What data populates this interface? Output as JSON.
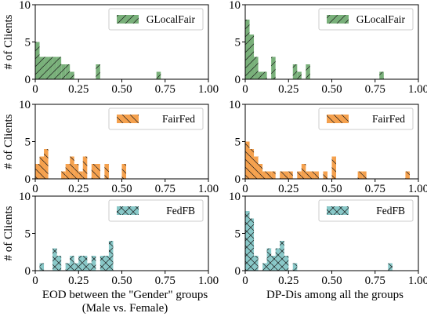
{
  "chart_data": [
    {
      "type": "bar",
      "legend": "GLocalFair",
      "color": "#79b07a",
      "hatch": "slash",
      "ylabel": "# of Clients",
      "xlabel": "",
      "xlim": [
        0,
        1
      ],
      "ylim": [
        0,
        10
      ],
      "xticks": [
        "0",
        "0.25",
        "0.50",
        "0.75",
        "1.00"
      ],
      "yticks": [
        "0",
        "5",
        "10"
      ],
      "bins": [
        {
          "x": 0.0,
          "count": 5
        },
        {
          "x": 0.025,
          "count": 3
        },
        {
          "x": 0.05,
          "count": 3
        },
        {
          "x": 0.075,
          "count": 3
        },
        {
          "x": 0.1,
          "count": 3
        },
        {
          "x": 0.125,
          "count": 3
        },
        {
          "x": 0.15,
          "count": 2
        },
        {
          "x": 0.175,
          "count": 2
        },
        {
          "x": 0.2,
          "count": 1
        },
        {
          "x": 0.35,
          "count": 2
        },
        {
          "x": 0.7,
          "count": 1
        }
      ]
    },
    {
      "type": "bar",
      "legend": "GLocalFair",
      "color": "#79b07a",
      "hatch": "slash",
      "ylabel": "",
      "xlabel": "",
      "xlim": [
        0,
        1
      ],
      "ylim": [
        0,
        10
      ],
      "xticks": [
        "0",
        "0.25",
        "0.50",
        "0.75",
        "1.00"
      ],
      "yticks": [
        "0",
        "5",
        "10"
      ],
      "bins": [
        {
          "x": 0.0,
          "count": 8
        },
        {
          "x": 0.025,
          "count": 6
        },
        {
          "x": 0.05,
          "count": 3
        },
        {
          "x": 0.075,
          "count": 1
        },
        {
          "x": 0.1,
          "count": 1
        },
        {
          "x": 0.15,
          "count": 3
        },
        {
          "x": 0.275,
          "count": 2
        },
        {
          "x": 0.3,
          "count": 1
        },
        {
          "x": 0.35,
          "count": 2
        },
        {
          "x": 0.775,
          "count": 1
        }
      ]
    },
    {
      "type": "bar",
      "legend": "FairFed",
      "color": "#f5a14e",
      "hatch": "backslash",
      "ylabel": "# of Clients",
      "xlabel": "",
      "xlim": [
        0,
        1
      ],
      "ylim": [
        0,
        10
      ],
      "xticks": [
        "0",
        "0.25",
        "0.50",
        "0.75",
        "1.00"
      ],
      "yticks": [
        "0",
        "5",
        "10"
      ],
      "bins": [
        {
          "x": 0.0,
          "count": 2
        },
        {
          "x": 0.025,
          "count": 3
        },
        {
          "x": 0.05,
          "count": 4
        },
        {
          "x": 0.15,
          "count": 1
        },
        {
          "x": 0.175,
          "count": 2
        },
        {
          "x": 0.2,
          "count": 3
        },
        {
          "x": 0.225,
          "count": 2
        },
        {
          "x": 0.25,
          "count": 1
        },
        {
          "x": 0.275,
          "count": 3
        },
        {
          "x": 0.325,
          "count": 2
        },
        {
          "x": 0.35,
          "count": 2
        },
        {
          "x": 0.4,
          "count": 2
        },
        {
          "x": 0.5,
          "count": 2
        }
      ]
    },
    {
      "type": "bar",
      "legend": "FairFed",
      "color": "#f5a14e",
      "hatch": "backslash",
      "ylabel": "",
      "xlabel": "",
      "xlim": [
        0,
        1
      ],
      "ylim": [
        0,
        10
      ],
      "xticks": [
        "0",
        "0.25",
        "0.50",
        "0.75",
        "1.00"
      ],
      "yticks": [
        "0",
        "5",
        "10"
      ],
      "bins": [
        {
          "x": 0.0,
          "count": 5
        },
        {
          "x": 0.025,
          "count": 4
        },
        {
          "x": 0.05,
          "count": 3
        },
        {
          "x": 0.075,
          "count": 2
        },
        {
          "x": 0.1,
          "count": 1
        },
        {
          "x": 0.125,
          "count": 1
        },
        {
          "x": 0.15,
          "count": 1
        },
        {
          "x": 0.2,
          "count": 1
        },
        {
          "x": 0.225,
          "count": 1
        },
        {
          "x": 0.25,
          "count": 1
        },
        {
          "x": 0.3,
          "count": 1
        },
        {
          "x": 0.325,
          "count": 2
        },
        {
          "x": 0.35,
          "count": 1
        },
        {
          "x": 0.375,
          "count": 1
        },
        {
          "x": 0.4,
          "count": 1
        },
        {
          "x": 0.45,
          "count": 1
        },
        {
          "x": 0.5,
          "count": 3
        },
        {
          "x": 0.65,
          "count": 1
        },
        {
          "x": 0.675,
          "count": 1
        },
        {
          "x": 0.925,
          "count": 1
        }
      ]
    },
    {
      "type": "bar",
      "legend": "FedFB",
      "color": "#88c8c8",
      "hatch": "cross",
      "ylabel": "# of Clients",
      "xlabel": "EOD between the \"Gender\" groups\n(Male vs. Female)",
      "xlim": [
        0,
        1
      ],
      "ylim": [
        0,
        10
      ],
      "xticks": [
        "0",
        "0.25",
        "0.50",
        "0.75",
        "1.00"
      ],
      "yticks": [
        "0",
        "5",
        "10"
      ],
      "bins": [
        {
          "x": 0.025,
          "count": 1
        },
        {
          "x": 0.1,
          "count": 3
        },
        {
          "x": 0.125,
          "count": 2
        },
        {
          "x": 0.175,
          "count": 1
        },
        {
          "x": 0.2,
          "count": 2
        },
        {
          "x": 0.225,
          "count": 1
        },
        {
          "x": 0.25,
          "count": 2
        },
        {
          "x": 0.275,
          "count": 2
        },
        {
          "x": 0.3,
          "count": 1
        },
        {
          "x": 0.325,
          "count": 2
        },
        {
          "x": 0.375,
          "count": 2
        },
        {
          "x": 0.4,
          "count": 2
        },
        {
          "x": 0.425,
          "count": 4
        }
      ]
    },
    {
      "type": "bar",
      "legend": "FedFB",
      "color": "#88c8c8",
      "hatch": "cross",
      "ylabel": "",
      "xlabel": "DP-Dis among all the groups",
      "xlim": [
        0,
        1
      ],
      "ylim": [
        0,
        10
      ],
      "xticks": [
        "0",
        "0.25",
        "0.50",
        "0.75",
        "1.00"
      ],
      "yticks": [
        "0",
        "5",
        "10"
      ],
      "bins": [
        {
          "x": 0.0,
          "count": 8
        },
        {
          "x": 0.025,
          "count": 7
        },
        {
          "x": 0.05,
          "count": 2
        },
        {
          "x": 0.1,
          "count": 1
        },
        {
          "x": 0.125,
          "count": 3
        },
        {
          "x": 0.15,
          "count": 2
        },
        {
          "x": 0.175,
          "count": 3
        },
        {
          "x": 0.2,
          "count": 4
        },
        {
          "x": 0.225,
          "count": 2
        },
        {
          "x": 0.275,
          "count": 1
        },
        {
          "x": 0.825,
          "count": 1
        }
      ]
    }
  ]
}
